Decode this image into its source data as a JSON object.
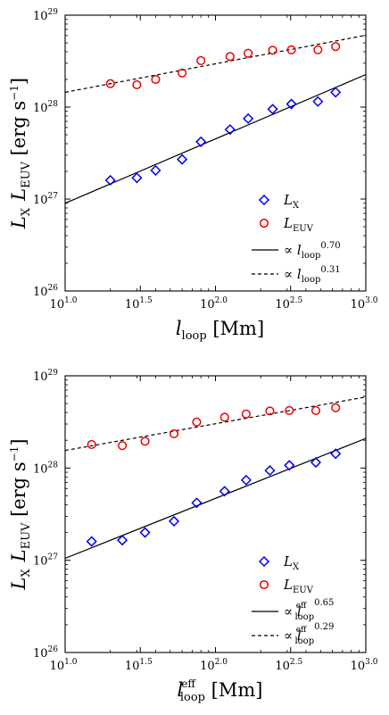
{
  "chart_data": [
    {
      "type": "scatter",
      "scale": {
        "x": "log",
        "y": "log"
      },
      "xlim": [
        10,
        1000
      ],
      "ylim": [
        1e+26,
        1e+29
      ],
      "x_ticks": [
        {
          "value": 10,
          "base": "10",
          "exp": "1.0"
        },
        {
          "value": 31.6228,
          "base": "10",
          "exp": "1.5"
        },
        {
          "value": 100,
          "base": "10",
          "exp": "2.0"
        },
        {
          "value": 316.228,
          "base": "10",
          "exp": "2.5"
        },
        {
          "value": 1000,
          "base": "10",
          "exp": "3.0"
        }
      ],
      "y_ticks": [
        {
          "value": 1e+26,
          "base": "10",
          "exp": "26"
        },
        {
          "value": 1e+27,
          "base": "10",
          "exp": "27"
        },
        {
          "value": 1e+28,
          "base": "10",
          "exp": "28"
        },
        {
          "value": 1e+29,
          "base": "10",
          "exp": "29"
        }
      ],
      "xlabel": {
        "main": "l",
        "sub": "loop",
        "sup": "",
        "unit": " [Mm]"
      },
      "ylabel": {
        "a": "L",
        "a_sub": "X",
        "b": "L",
        "b_sub": "EUV",
        "unit": " [erg s",
        "unit_sup": "−1",
        "unit_close": "]"
      },
      "legend_position": "lower-right",
      "series": [
        {
          "name": "L",
          "name_sub": "X",
          "marker": "diamond",
          "color": "#0000ee",
          "x": [
            20,
            30,
            40,
            60,
            80,
            125,
            165,
            240,
            320,
            480,
            630
          ],
          "y": [
            1.6e+27,
            1.7e+27,
            2.05e+27,
            2.7e+27,
            4.2e+27,
            5.7e+27,
            7.5e+27,
            9.5e+27,
            1.08e+28,
            1.15e+28,
            1.45e+28
          ]
        },
        {
          "name": "L",
          "name_sub": "EUV",
          "marker": "circle",
          "color": "#ee0000",
          "x": [
            20,
            30,
            40,
            60,
            80,
            125,
            165,
            240,
            320,
            480,
            630
          ],
          "y": [
            1.8e+28,
            1.75e+28,
            2e+28,
            2.35e+28,
            3.2e+28,
            3.55e+28,
            3.85e+28,
            4.15e+28,
            4.2e+28,
            4.2e+28,
            4.55e+28
          ]
        }
      ],
      "fits": [
        {
          "exponent": "0.70",
          "style": "solid",
          "slope": 0.7,
          "intercept_at_10": 9e+26,
          "label_pre": "∝ l",
          "label_sub": "loop",
          "label_over": ""
        },
        {
          "exponent": "0.31",
          "style": "dashed",
          "slope": 0.31,
          "intercept_at_10": 1.45e+28,
          "label_pre": "∝ l",
          "label_sub": "loop",
          "label_over": ""
        }
      ]
    },
    {
      "type": "scatter",
      "scale": {
        "x": "log",
        "y": "log"
      },
      "xlim": [
        10,
        1000
      ],
      "ylim": [
        1e+26,
        1e+29
      ],
      "x_ticks": [
        {
          "value": 10,
          "base": "10",
          "exp": "1.0"
        },
        {
          "value": 31.6228,
          "base": "10",
          "exp": "1.5"
        },
        {
          "value": 100,
          "base": "10",
          "exp": "2.0"
        },
        {
          "value": 316.228,
          "base": "10",
          "exp": "2.5"
        },
        {
          "value": 1000,
          "base": "10",
          "exp": "3.0"
        }
      ],
      "y_ticks": [
        {
          "value": 1e+26,
          "base": "10",
          "exp": "26"
        },
        {
          "value": 1e+27,
          "base": "10",
          "exp": "27"
        },
        {
          "value": 1e+28,
          "base": "10",
          "exp": "28"
        },
        {
          "value": 1e+29,
          "base": "10",
          "exp": "29"
        }
      ],
      "xlabel": {
        "main": "l",
        "sub": "loop",
        "sup": "eff",
        "unit": " [Mm]"
      },
      "ylabel": {
        "a": "L",
        "a_sub": "X",
        "b": "L",
        "b_sub": "EUV",
        "unit": " [erg s",
        "unit_sup": "−1",
        "unit_close": "]"
      },
      "legend_position": "lower-right",
      "series": [
        {
          "name": "L",
          "name_sub": "X",
          "marker": "diamond",
          "color": "#0000ee",
          "x": [
            15,
            24,
            34,
            53,
            75,
            115,
            160,
            230,
            310,
            465,
            630
          ],
          "y": [
            1.6e+27,
            1.65e+27,
            2e+27,
            2.65e+27,
            4.2e+27,
            5.6e+27,
            7.4e+27,
            9.4e+27,
            1.07e+28,
            1.15e+28,
            1.43e+28
          ]
        },
        {
          "name": "L",
          "name_sub": "EUV",
          "marker": "circle",
          "color": "#ee0000",
          "x": [
            15,
            24,
            34,
            53,
            75,
            115,
            160,
            230,
            310,
            465,
            630
          ],
          "y": [
            1.8e+28,
            1.75e+28,
            1.95e+28,
            2.35e+28,
            3.15e+28,
            3.55e+28,
            3.85e+28,
            4.15e+28,
            4.2e+28,
            4.2e+28,
            4.5e+28
          ]
        }
      ],
      "fits": [
        {
          "exponent": "0.65",
          "style": "solid",
          "slope": 0.65,
          "intercept_at_10": 1.05e+27,
          "label_pre": "∝ l",
          "label_sub": "loop",
          "label_over": "eff"
        },
        {
          "exponent": "0.29",
          "style": "dashed",
          "slope": 0.29,
          "intercept_at_10": 1.55e+28,
          "label_pre": "∝ l",
          "label_sub": "loop",
          "label_over": "eff"
        }
      ]
    }
  ]
}
